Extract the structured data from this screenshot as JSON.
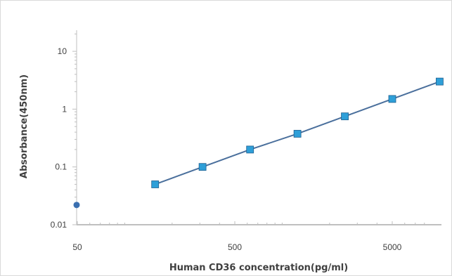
{
  "chart_data": {
    "type": "scatter",
    "title": "",
    "xlabel": "Human CD36 concentration(pg/ml)",
    "ylabel": "Absorbance(450nm)",
    "x_scale": "log",
    "y_scale": "log",
    "xlim": [
      50,
      8000
    ],
    "ylim": [
      0.01,
      40
    ],
    "x_ticks": [
      {
        "value": 50,
        "label": "50"
      },
      {
        "value": 500,
        "label": "500"
      },
      {
        "value": 5000,
        "label": "5000"
      }
    ],
    "y_ticks": [
      {
        "value": 0.01,
        "label": "0.01"
      },
      {
        "value": 0.1,
        "label": "0.1"
      },
      {
        "value": 1,
        "label": "1"
      },
      {
        "value": 10,
        "label": "10"
      }
    ],
    "grid": false,
    "legend": "none",
    "series": [
      {
        "x": [
          156,
          312,
          625,
          1250,
          2500,
          5000,
          10000
        ],
        "y": [
          0.05,
          0.1,
          0.2,
          0.375,
          0.75,
          1.5,
          3.0
        ],
        "marker": "square",
        "color": "#2e9fd8",
        "line_color": "#4a6f9c"
      },
      {
        "x": [
          0
        ],
        "y": [
          0.022
        ],
        "marker": "circle",
        "color": "#3a6fb0"
      }
    ]
  }
}
